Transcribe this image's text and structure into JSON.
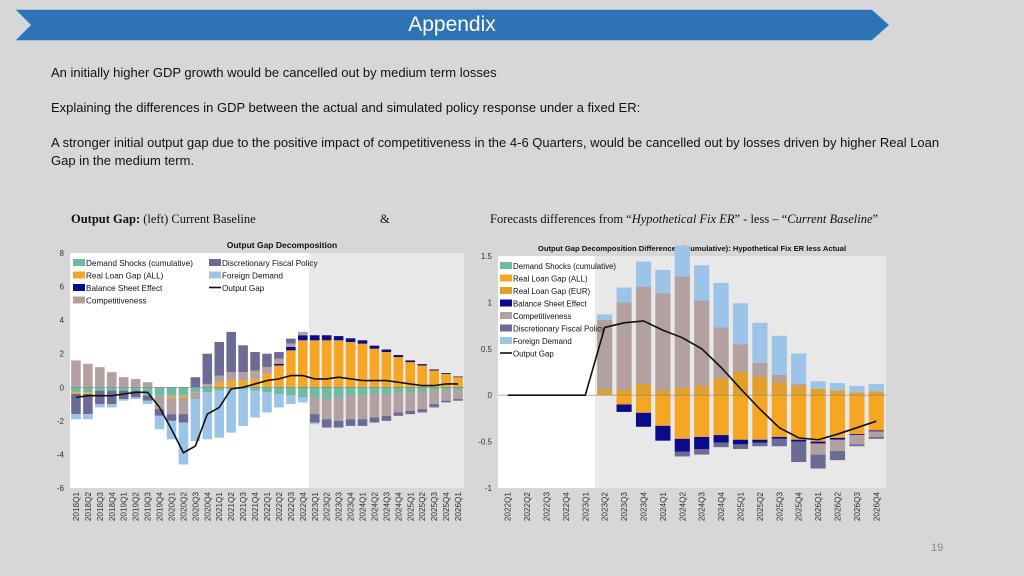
{
  "header": {
    "title": "Appendix"
  },
  "paragraphs": [
    "An initially higher GDP growth would be cancelled out by medium term losses",
    "Explaining the differences in GDP between the actual and simulated policy response under a fixed ER:",
    "A stronger initial output gap due to the positive impact of competitiveness in the 4-6 Quarters, would be cancelled out by losses driven by higher Real Loan Gap in the medium term."
  ],
  "captions": {
    "left_bold": "Output Gap:",
    "left_rest": " (left) Current Baseline",
    "amp": "&",
    "right_pre": "Forecasts differences from “",
    "right_italic1": "Hypothetical Fix ER",
    "right_mid": "” - less – “",
    "right_italic2": "Current Baseline",
    "right_end": "”"
  },
  "page_number": "19",
  "colors": {
    "banner": "#2e74b5",
    "demand": "#6dbba3",
    "real_loan_all": "#f5a623",
    "real_loan_eur": "#e0a02a",
    "balance": "#0a0a8c",
    "competitiveness": "#b3a0a0",
    "discretionary": "#6b6b94",
    "foreign": "#9cc3e8",
    "line": "#111111",
    "forecast_shade": "#e8e8e8"
  },
  "chart_data": [
    {
      "type": "bar",
      "title": "Output Gap Decomposition",
      "ylim": [
        -6,
        8
      ],
      "yticks": [
        -6,
        -4,
        -2,
        0,
        2,
        4,
        6,
        8
      ],
      "forecast_start_index": 20,
      "categories": [
        "2018Q1",
        "2018Q2",
        "2018Q3",
        "2018Q4",
        "2019Q1",
        "2019Q2",
        "2019Q3",
        "2019Q4",
        "2020Q1",
        "2020Q2",
        "2020Q3",
        "2020Q4",
        "2021Q1",
        "2021Q2",
        "2021Q3",
        "2021Q4",
        "2022Q1",
        "2022Q2",
        "2022Q3",
        "2022Q4",
        "2023Q1",
        "2023Q2",
        "2023Q3",
        "2023Q4",
        "2024Q1",
        "2024Q2",
        "2024Q3",
        "2024Q4",
        "2025Q1",
        "2025Q2",
        "2025Q3",
        "2025Q4",
        "2026Q1"
      ],
      "legend": [
        "Demand Shocks (cumulative)",
        "Discretionary Fiscal Policy",
        "Real Loan Gap (ALL)",
        "Foreign Demand",
        "Balance Sheet Effect",
        "Output Gap",
        "Competitiveness"
      ],
      "series": [
        {
          "name": "Demand Shocks (cumulative)",
          "color": "demand",
          "values": [
            -0.3,
            -0.3,
            -0.2,
            -0.2,
            -0.2,
            -0.2,
            -0.5,
            -0.5,
            -0.5,
            -0.5,
            -0.3,
            -0.3,
            -0.2,
            -0.1,
            -0.1,
            -0.2,
            -0.3,
            -0.4,
            -0.5,
            -0.6,
            -0.6,
            -0.7,
            -0.6,
            -0.5,
            -0.5,
            -0.4,
            -0.4,
            -0.3,
            -0.3,
            -0.3,
            -0.2,
            -0.2,
            -0.2
          ]
        },
        {
          "name": "Real Loan Gap (ALL)",
          "color": "real_loan_all",
          "values": [
            -0.1,
            -0.1,
            0,
            0,
            0,
            0,
            0,
            0,
            -0.1,
            -0.1,
            0,
            0,
            0.3,
            0.4,
            0.4,
            0.5,
            0.8,
            1.3,
            2.2,
            2.8,
            2.8,
            2.8,
            2.8,
            2.7,
            2.6,
            2.3,
            2.1,
            1.8,
            1.5,
            1.3,
            1.0,
            0.8,
            0.6
          ]
        },
        {
          "name": "Balance Sheet Effect",
          "color": "balance",
          "values": [
            0,
            0,
            0,
            0,
            0,
            0,
            0,
            0,
            0,
            0,
            0,
            0,
            0,
            0,
            0,
            0,
            0,
            0.1,
            0.2,
            0.3,
            0.3,
            0.3,
            0.25,
            0.22,
            0.2,
            0.18,
            0.15,
            0.12,
            0.1,
            0.08,
            0.06,
            0.05,
            0.04
          ]
        },
        {
          "name": "Competitiveness",
          "color": "competitiveness",
          "values": [
            1.6,
            1.4,
            1.2,
            0.9,
            0.6,
            0.5,
            0.3,
            -0.8,
            -1.0,
            -1.0,
            -0.4,
            0.2,
            0.4,
            0.5,
            0.5,
            0.5,
            0.4,
            0.3,
            0.2,
            0.2,
            -1.0,
            -1.2,
            -1.4,
            -1.4,
            -1.4,
            -1.4,
            -1.3,
            -1.2,
            -1.1,
            -1.0,
            -0.8,
            -0.6,
            -0.5
          ]
        },
        {
          "name": "Discretionary Fiscal Policy",
          "color": "discretionary",
          "values": [
            -1.2,
            -1.2,
            -0.8,
            -0.8,
            -0.5,
            -0.4,
            -0.3,
            -0.4,
            -0.4,
            -0.5,
            0.6,
            1.8,
            2.0,
            2.4,
            1.6,
            1.1,
            0.8,
            0.4,
            0.3,
            0,
            -0.5,
            -0.5,
            -0.4,
            -0.4,
            -0.4,
            -0.3,
            -0.3,
            -0.2,
            -0.2,
            -0.2,
            -0.2,
            -0.1,
            -0.1
          ]
        },
        {
          "name": "Foreign Demand",
          "color": "foreign",
          "values": [
            -0.3,
            -0.3,
            -0.2,
            -0.2,
            -0.1,
            -0.1,
            -0.2,
            -0.8,
            -1.1,
            -2.5,
            -2.5,
            -2.8,
            -2.8,
            -2.6,
            -2.2,
            -1.6,
            -1.2,
            -0.8,
            -0.5,
            -0.3,
            -0.1,
            0,
            0,
            0,
            0,
            0,
            0,
            0,
            0,
            0,
            0,
            0,
            0
          ]
        }
      ],
      "line": {
        "name": "Output Gap",
        "values": [
          -0.6,
          -0.5,
          -0.5,
          -0.5,
          -0.4,
          -0.3,
          -0.3,
          -1.2,
          -2.5,
          -3.9,
          -3.5,
          -1.6,
          -1.2,
          -0.1,
          0.0,
          0.2,
          0.4,
          0.5,
          0.7,
          0.7,
          0.5,
          0.5,
          0.6,
          0.5,
          0.4,
          0.4,
          0.4,
          0.3,
          0.2,
          0.1,
          0.1,
          0.2,
          0.2
        ]
      }
    },
    {
      "type": "bar",
      "title": "Output Gap Decomposition Differences (Cumulative): Hypothetical Fix ER less Actual",
      "ylim": [
        -1,
        1.5
      ],
      "yticks": [
        -1,
        -0.5,
        0,
        0.5,
        1,
        1.5
      ],
      "forecast_start_index": 5,
      "categories": [
        "2022Q1",
        "2022Q2",
        "2022Q3",
        "2022Q4",
        "2023Q1",
        "2023Q2",
        "2023Q3",
        "2023Q4",
        "2024Q1",
        "2024Q2",
        "2024Q3",
        "2024Q4",
        "2025Q1",
        "2025Q2",
        "2025Q3",
        "2025Q4",
        "2026Q1",
        "2026Q2",
        "2026Q3",
        "2026Q4"
      ],
      "legend": [
        "Demand Shocks (cumulative)",
        "Real Loan Gap (ALL)",
        "Real Loan Gap (EUR)",
        "Balance Sheet Effect",
        "Competitiveness",
        "Discretionary Fiscal Policy",
        "Foreign Demand",
        "Output Gap"
      ],
      "series": [
        {
          "name": "Demand Shocks (cumulative)",
          "color": "demand",
          "values": [
            0,
            0,
            0,
            0,
            0,
            0,
            0,
            0,
            0,
            0,
            0,
            0,
            0,
            0,
            0,
            0,
            0,
            0,
            0,
            0
          ]
        },
        {
          "name": "Real Loan Gap (ALL)",
          "color": "real_loan_all",
          "values": [
            0,
            0,
            0,
            0,
            0,
            0,
            -0.1,
            -0.19,
            -0.33,
            -0.47,
            -0.45,
            -0.43,
            -0.48,
            -0.48,
            -0.45,
            -0.48,
            -0.5,
            -0.46,
            -0.42,
            -0.38
          ]
        },
        {
          "name": "Real Loan Gap (EUR)",
          "color": "real_loan_eur",
          "values": [
            0,
            0,
            0,
            0,
            0,
            0.06,
            0.06,
            0.12,
            0.05,
            0.08,
            0.1,
            0.18,
            0.25,
            0.2,
            0.14,
            0.1,
            0.07,
            0.05,
            0.03,
            0.04
          ]
        },
        {
          "name": "Balance Sheet Effect",
          "color": "balance",
          "values": [
            0,
            0,
            0,
            0,
            0,
            0,
            -0.08,
            -0.15,
            -0.16,
            -0.14,
            -0.13,
            -0.08,
            -0.05,
            -0.03,
            -0.02,
            -0.02,
            -0.02,
            -0.02,
            -0.01,
            -0.01
          ]
        },
        {
          "name": "Competitiveness",
          "color": "competitiveness",
          "values": [
            0,
            0,
            0,
            0,
            0,
            0.75,
            0.94,
            1.05,
            1.05,
            1.2,
            0.92,
            0.55,
            0.3,
            0.15,
            0.08,
            0.02,
            -0.12,
            -0.12,
            -0.1,
            -0.06
          ]
        },
        {
          "name": "Discretionary Fiscal Policy",
          "color": "discretionary",
          "values": [
            0,
            0,
            0,
            0,
            0,
            0,
            0,
            0,
            0,
            -0.05,
            -0.06,
            -0.05,
            -0.05,
            -0.04,
            -0.08,
            -0.22,
            -0.15,
            -0.1,
            -0.02,
            -0.02
          ]
        },
        {
          "name": "Foreign Demand",
          "color": "foreign",
          "values": [
            0,
            0,
            0,
            0,
            0,
            0.06,
            0.16,
            0.27,
            0.25,
            0.33,
            0.38,
            0.48,
            0.44,
            0.43,
            0.42,
            0.33,
            0.08,
            0.08,
            0.07,
            0.08
          ]
        }
      ],
      "line": {
        "name": "Output Gap",
        "values": [
          0,
          0,
          0,
          0,
          0,
          0.73,
          0.78,
          0.8,
          0.7,
          0.62,
          0.5,
          0.3,
          0.07,
          -0.15,
          -0.35,
          -0.46,
          -0.48,
          -0.42,
          -0.35,
          -0.28
        ]
      }
    }
  ]
}
